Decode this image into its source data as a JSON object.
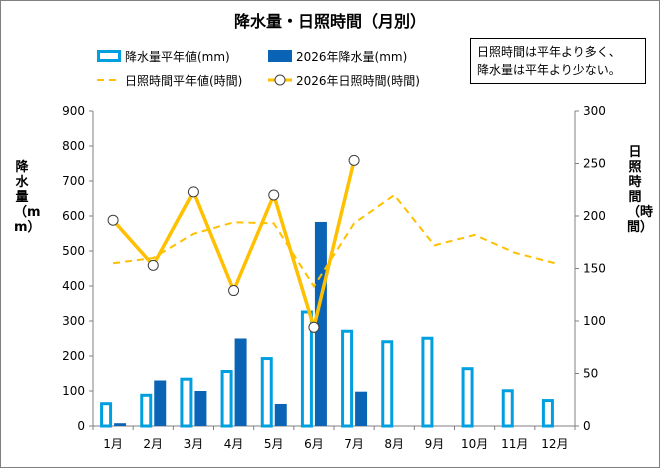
{
  "title": "降水量・日照時間（月別）",
  "note": {
    "line1": "日照時間は平年より多く、",
    "line2": "降水量は平年より少ない。"
  },
  "chart_data": {
    "type": "bar",
    "title": "降水量・日照時間（月別）",
    "categories": [
      "1月",
      "2月",
      "3月",
      "4月",
      "5月",
      "6月",
      "7月",
      "8月",
      "9月",
      "10月",
      "11月",
      "12月"
    ],
    "ylabel": "降水量（mm）",
    "ylabel_right": "日照時間（時間）",
    "ylim": [
      0,
      900
    ],
    "ylim_right": [
      0,
      300
    ],
    "yticks": [
      "0",
      "100",
      "200",
      "300",
      "400",
      "500",
      "600",
      "700",
      "800",
      "900"
    ],
    "yticks_right": [
      "0",
      "50",
      "100",
      "150",
      "200",
      "250",
      "300"
    ],
    "grid": false,
    "legend_position": "top-left",
    "series": [
      {
        "name": "降水量平年値(mm)",
        "kind": "bar-outline",
        "axis": "left",
        "color": "#00a0e0",
        "values": [
          68,
          92,
          138,
          160,
          197,
          330,
          275,
          245,
          255,
          168,
          105,
          77
        ]
      },
      {
        "name": "2026年降水量(mm)",
        "kind": "bar",
        "axis": "left",
        "color": "#0a63b5",
        "values": [
          8,
          130,
          100,
          250,
          63,
          583,
          98,
          null,
          null,
          null,
          null,
          null
        ]
      },
      {
        "name": "日照時間平年値(時間)",
        "kind": "dashed-line",
        "axis": "right",
        "color": "#ffc000",
        "values": [
          155,
          160,
          183,
          194,
          193,
          133,
          193,
          220,
          172,
          182,
          165,
          155
        ]
      },
      {
        "name": "2026年日照時間(時間)",
        "kind": "line-marker",
        "axis": "right",
        "color": "#ffc000",
        "values": [
          196,
          153,
          223,
          129,
          220,
          94,
          253,
          null,
          null,
          null,
          null,
          null
        ]
      }
    ]
  }
}
